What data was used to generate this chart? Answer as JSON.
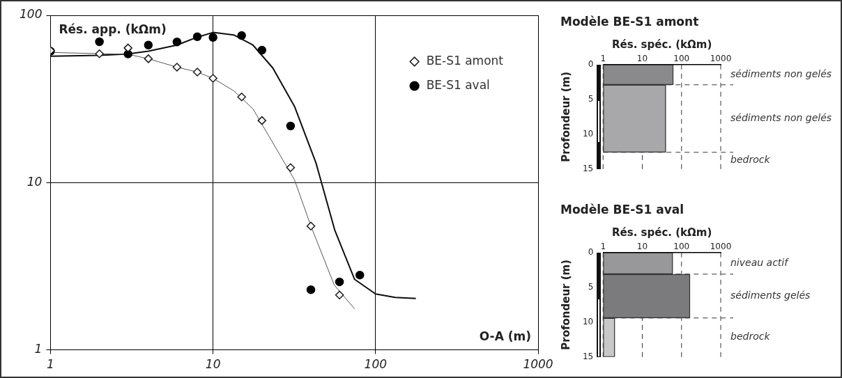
{
  "chart_data": [
    {
      "type": "scatter",
      "xlabel": "O-A (m)",
      "ylabel": "Rés. app. (kΩm)",
      "log": "xy",
      "xlim": [
        1,
        1000
      ],
      "ylim": [
        1,
        100
      ],
      "xticks": [
        1,
        10,
        100,
        1000
      ],
      "yticks": [
        1,
        10,
        100
      ],
      "grid": true,
      "legend": "right",
      "series": [
        {
          "name": "BE-S1 amont",
          "type": "scatter",
          "marker": "diamond",
          "color": "#1a1a1a",
          "x": [
            1,
            2,
            3,
            4,
            6,
            8,
            10,
            15,
            20,
            30,
            40,
            60
          ],
          "values": [
            61.5,
            58.9,
            63.8,
            55,
            49,
            45.8,
            42,
            32.5,
            23.5,
            12.3,
            5.5,
            2.13
          ]
        },
        {
          "name": "BE-S1 aval",
          "type": "scatter",
          "marker": "circle",
          "color": "#000000",
          "x": [
            1,
            2,
            3,
            4,
            6,
            8,
            10,
            15,
            20,
            30,
            40,
            60,
            80
          ],
          "values": [
            61,
            69.5,
            58.7,
            66.4,
            69.3,
            74.5,
            73.8,
            75.7,
            61.9,
            21.8,
            2.29,
            2.55,
            2.8
          ]
        },
        {
          "type": "line",
          "marker": "none",
          "color": "#555555",
          "x": [
            1,
            2,
            3,
            4,
            6,
            8,
            10,
            13.4,
            17.6,
            31.7,
            40,
            55.7,
            74.3
          ],
          "values": [
            60,
            59,
            58.5,
            55,
            49,
            45.8,
            42,
            35.4,
            27.6,
            10.4,
            5.5,
            2.44,
            1.76
          ]
        },
        {
          "type": "line",
          "marker": "none",
          "color": "#0d0d0d",
          "x": [
            1,
            2,
            3,
            4,
            6,
            8,
            10,
            13.4,
            17.6,
            23.3,
            31.7,
            43,
            56.1,
            74.3,
            100,
            132,
            177
          ],
          "values": [
            57,
            57.7,
            58.7,
            61,
            66.4,
            74,
            79,
            76.3,
            66.4,
            48.5,
            28.6,
            13.1,
            5.2,
            2.64,
            2.16,
            2.06,
            2.03
          ]
        }
      ]
    },
    {
      "type": "bar",
      "orientation": "horizontal",
      "title": "Modèle BE-S1 amont",
      "xlabel": "Rés. spéc. (kΩm)",
      "ylabel": "Profondeur (m)",
      "log": "x",
      "xlim": [
        1,
        1000
      ],
      "xticks": [
        1,
        10,
        100,
        1000
      ],
      "ylim": [
        15,
        0
      ],
      "yticks": [
        0,
        5,
        10,
        15
      ],
      "grid": "x",
      "x": [
        1.45,
        7.75
      ],
      "values": [
        62,
        40
      ],
      "colors": [
        "#8a8a8c",
        "#a8a8aa"
      ],
      "ref_lines": [
        {
          "axis": "y",
          "value": 2.9,
          "line_style": "dashed"
        },
        {
          "axis": "y",
          "value": 12.6,
          "line_style": "dashed"
        }
      ],
      "annotations": [
        "sédiments non gelés",
        "sédiments non gelés",
        "bedrock"
      ]
    },
    {
      "type": "bar",
      "orientation": "horizontal",
      "title": "Modèle BE-S1 aval",
      "xlabel": "Rés. spéc. (kΩm)",
      "ylabel": "Profondeur (m)",
      "log": "x",
      "xlim": [
        1,
        1000
      ],
      "xticks": [
        1,
        10,
        100,
        1000
      ],
      "ylim": [
        15,
        0
      ],
      "yticks": [
        0,
        5,
        10,
        15
      ],
      "grid": "x",
      "x": [
        1.55,
        6.25,
        12.2
      ],
      "values": [
        60,
        165,
        2
      ],
      "colors": [
        "#98989a",
        "#7b7b7d",
        "#c8c8c8"
      ],
      "ref_lines": [
        {
          "axis": "y",
          "value": 3.1,
          "line_style": "dashed"
        },
        {
          "axis": "y",
          "value": 9.4,
          "line_style": "dashed"
        }
      ],
      "annotations": [
        "niveau actif",
        "sédiments gelés",
        "bedrock"
      ]
    }
  ]
}
